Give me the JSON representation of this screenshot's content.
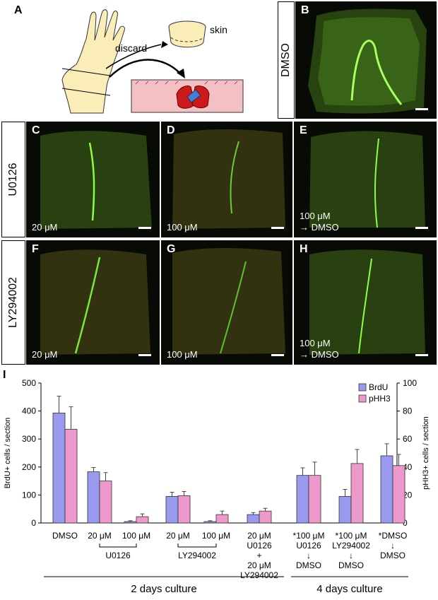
{
  "panel_a": {
    "letter": "A",
    "skin_label": "skin",
    "discard_label": "discard"
  },
  "panel_b": {
    "letter": "B",
    "row_label": "DMSO"
  },
  "row_u0126": {
    "label": "U0126"
  },
  "row_ly": {
    "label": "LY294002"
  },
  "micro_panels": [
    {
      "letter": "C",
      "conc": "20 μM",
      "conc2": ""
    },
    {
      "letter": "D",
      "conc": "100 μM",
      "conc2": ""
    },
    {
      "letter": "E",
      "conc": "100 μM",
      "conc2": "→ DMSO"
    },
    {
      "letter": "F",
      "conc": "20 μM",
      "conc2": ""
    },
    {
      "letter": "G",
      "conc": "100 μM",
      "conc2": ""
    },
    {
      "letter": "H",
      "conc": "100 μM",
      "conc2": "→ DMSO"
    }
  ],
  "panel_i": {
    "letter": "I"
  },
  "chart_data": {
    "type": "bar",
    "ylabel": "BrdU+ cells / section",
    "y2label": "pHH3+ cells / section",
    "ylim": [
      0,
      500
    ],
    "y2lim": [
      0,
      100
    ],
    "yticks": [
      "0",
      "100",
      "200",
      "300",
      "400",
      "500"
    ],
    "y2ticks": [
      "0",
      "20",
      "40",
      "60",
      "80",
      "100"
    ],
    "legend": {
      "placement": "top-right",
      "entries": [
        "BrdU",
        "pHH3"
      ]
    },
    "colors": {
      "BrdU": "#9999ee",
      "pHH3": "#ee99cc"
    },
    "series": [
      {
        "name": "BrdU",
        "axis": "left",
        "values": [
          393,
          183,
          5,
          95,
          5,
          30,
          170,
          95,
          240
        ],
        "errors": [
          60,
          15,
          3,
          15,
          3,
          7,
          27,
          25,
          43
        ]
      },
      {
        "name": "pHH3",
        "axis": "right",
        "values": [
          67,
          30,
          4.5,
          19.5,
          6,
          8.5,
          34,
          42.5,
          41
        ],
        "errors": [
          16,
          6,
          2,
          3,
          2.5,
          2,
          9.5,
          10,
          8
        ]
      }
    ],
    "categories": [
      [
        "DMSO"
      ],
      [
        "20 μM"
      ],
      [
        "100 μM"
      ],
      [
        "20 μM"
      ],
      [
        "100 μM"
      ],
      [
        "20 μM",
        "U0126",
        "+",
        "20 μM",
        "LY294002"
      ],
      [
        "*100 μM",
        "U0126",
        "↓",
        "DMSO"
      ],
      [
        "*100 μM",
        "LY294002",
        "↓",
        "DMSO"
      ],
      [
        "*DMSO",
        "↓",
        "DMSO"
      ]
    ],
    "groups": [
      {
        "label": "U0126",
        "from": 1,
        "to": 2
      },
      {
        "label": "LY294002",
        "from": 3,
        "to": 4
      }
    ],
    "culture_labels": [
      {
        "label": "2 days culture",
        "from": 0,
        "to": 5
      },
      {
        "label": "4 days culture",
        "from": 6,
        "to": 8
      }
    ]
  }
}
